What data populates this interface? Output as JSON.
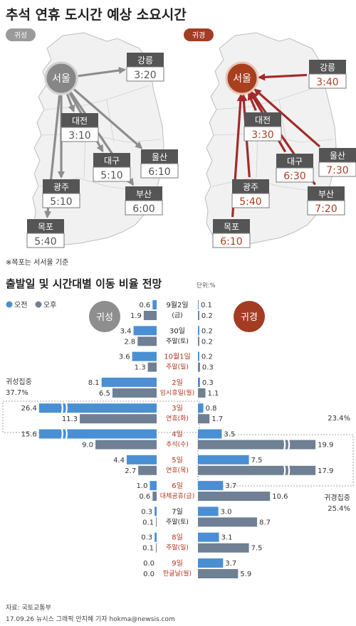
{
  "title": "추석 연휴 도시간 예상 소요시간",
  "section_tags": {
    "outbound": "귀성",
    "return": "귀경"
  },
  "map_outbound": {
    "hub": "서울",
    "routes": [
      {
        "city": "강릉",
        "time": "3:20"
      },
      {
        "city": "대전",
        "time": "3:10"
      },
      {
        "city": "대구",
        "time": "5:10"
      },
      {
        "city": "울산",
        "time": "6:10"
      },
      {
        "city": "광주",
        "time": "5:10"
      },
      {
        "city": "부산",
        "time": "6:00"
      },
      {
        "city": "목포",
        "time": "5:40"
      }
    ]
  },
  "map_return": {
    "hub": "서울",
    "routes": [
      {
        "city": "강릉",
        "time": "3:40"
      },
      {
        "city": "대전",
        "time": "3:30"
      },
      {
        "city": "대구",
        "time": "6:30"
      },
      {
        "city": "울산",
        "time": "7:30"
      },
      {
        "city": "광주",
        "time": "5:40"
      },
      {
        "city": "부산",
        "time": "7:20"
      },
      {
        "city": "목포",
        "time": "6:10"
      }
    ]
  },
  "map_note": "※목포는 서서울 기준",
  "chart_title": "출발일 및 시간대별 이동 비율 전망",
  "unit": "단위:%",
  "colors": {
    "am": "#4a8fd4",
    "pm": "#6f7f94",
    "outbound_accent": "#808080",
    "return_accent": "#a8401f",
    "map_fill": "#f1f1f1",
    "map_stroke": "#bdbdbd",
    "red_text": "#b0361e"
  },
  "chart_data": {
    "type": "bar",
    "legend": [
      "오전",
      "오후"
    ],
    "side_labels": {
      "left": "귀성",
      "right": "귀경"
    },
    "categories": [
      {
        "date": "9월2일",
        "day": "(금)",
        "highlight": false
      },
      {
        "date": "30일",
        "day": "주말(토)",
        "highlight": false
      },
      {
        "date": "10월1일",
        "day": "주말(일)",
        "highlight": true
      },
      {
        "date": "2일",
        "day": "임시휴일(월)",
        "highlight": true
      },
      {
        "date": "3일",
        "day": "연휴(화)",
        "highlight": true
      },
      {
        "date": "4일",
        "day": "추석(수)",
        "highlight": true
      },
      {
        "date": "5일",
        "day": "연휴(목)",
        "highlight": true
      },
      {
        "date": "6일",
        "day": "대체공휴(금)",
        "highlight": true
      },
      {
        "date": "7일",
        "day": "주말(토)",
        "highlight": false
      },
      {
        "date": "8일",
        "day": "주말(일)",
        "highlight": true
      },
      {
        "date": "9일",
        "day": "한글날(월)",
        "highlight": true
      }
    ],
    "outbound": {
      "am": [
        0.6,
        3.4,
        3.6,
        8.1,
        26.4,
        15.6,
        4.4,
        1.0,
        0.3,
        0.3,
        0.0
      ],
      "pm": [
        1.9,
        2.8,
        1.3,
        6.5,
        11.3,
        9.0,
        2.7,
        0.6,
        0.1,
        0.1,
        0.0
      ]
    },
    "return": {
      "am": [
        0.1,
        0.2,
        0.2,
        0.3,
        0.8,
        3.5,
        7.5,
        3.7,
        3.0,
        3.1,
        3.7
      ],
      "pm": [
        0.2,
        0.2,
        0.3,
        1.1,
        1.7,
        19.9,
        17.9,
        10.6,
        8.7,
        7.5,
        5.9
      ]
    },
    "annotations": {
      "outbound_peak_label": "귀성집중",
      "outbound_peak_value": "37.7%",
      "return_peak_top": "23.4%",
      "return_peak_label": "귀경집중",
      "return_peak_value": "25.4%"
    }
  },
  "footer": {
    "source": "자료: 국토교통부",
    "credit": "17.09.26 뉴시스 그래픽 안지혜 기자 hokma@newsis.com"
  }
}
